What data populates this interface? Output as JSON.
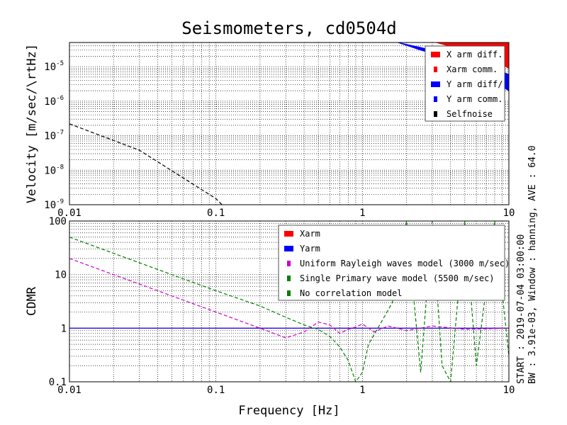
{
  "title": "Seismometers, cd0504d",
  "side_text": {
    "line1": "START : 2019-07-04 03:00:00",
    "line2": "BW : 3.91e-03, Window : hanning, AVE : 64.0"
  },
  "chart_data": [
    {
      "type": "line",
      "name": "velocity-panel",
      "ylabel": "Velocity [m/sec/\\rtHz]",
      "xscale": "log",
      "yscale": "log",
      "xlim": [
        0.01,
        10
      ],
      "ylim": [
        1e-09,
        5e-05
      ],
      "x_ticks": [
        "0.01",
        "0.1",
        "1",
        "10"
      ],
      "y_ticks": [
        {
          "base": "10",
          "exp": "-9",
          "value": 1e-09
        },
        {
          "base": "10",
          "exp": "-8",
          "value": 1e-08
        },
        {
          "base": "10",
          "exp": "-7",
          "value": 1e-07
        },
        {
          "base": "10",
          "exp": "-6",
          "value": 1e-06
        },
        {
          "base": "10",
          "exp": "-5",
          "value": 1e-05
        }
      ],
      "grid": true,
      "legend_position": "top-right",
      "series": [
        {
          "name": "X arm diff.",
          "color": "#ff0000",
          "style": "band",
          "x": [
            3.2,
            4.5,
            6.0,
            8.0,
            10.0
          ],
          "upper": [
            5e-05,
            5e-05,
            5e-05,
            5e-05,
            5e-05
          ],
          "lower": [
            5e-05,
            3.3e-05,
            2.1e-05,
            1.4e-05,
            9e-06
          ]
        },
        {
          "name": "Xarm comm.",
          "color": "#ff0000",
          "style": "dotted",
          "x": [],
          "y": []
        },
        {
          "name": "Y arm diff/",
          "color": "#0000ff",
          "style": "band",
          "x": [
            1.75,
            2.5,
            3.5,
            5.0,
            7.0,
            10.0
          ],
          "upper": [
            5e-05,
            3.6e-05,
            2.5e-05,
            1.6e-05,
            1e-05,
            6e-06
          ],
          "lower": [
            5e-05,
            3e-05,
            2e-05,
            1.2e-05,
            5e-06,
            2e-06
          ]
        },
        {
          "name": "Y arm comm.",
          "color": "#0000ff",
          "style": "dotted",
          "x": [],
          "y": []
        },
        {
          "name": "Selfnoise",
          "color": "#000000",
          "style": "dashed",
          "x": [
            0.01,
            0.03,
            0.1,
            0.11
          ],
          "y": [
            2.2e-07,
            3.8e-08,
            1.5e-09,
            1e-09
          ]
        }
      ]
    },
    {
      "type": "line",
      "name": "cdmr-panel",
      "xlabel": "Frequency [Hz]",
      "ylabel": "CDMR",
      "xscale": "log",
      "yscale": "log",
      "xlim": [
        0.01,
        10
      ],
      "ylim": [
        0.1,
        100
      ],
      "x_ticks": [
        "0.01",
        "0.1",
        "1",
        "10"
      ],
      "y_ticks": [
        {
          "label": "0.1",
          "value": 0.1
        },
        {
          "label": "1",
          "value": 1
        },
        {
          "label": "10",
          "value": 10
        },
        {
          "label": "100",
          "value": 100
        }
      ],
      "grid": true,
      "legend_position": "top-right",
      "series": [
        {
          "name": "Xarm",
          "color": "#ff0000",
          "style": "solid",
          "x": [
            0.01,
            10
          ],
          "y": [
            1.0,
            1.0
          ]
        },
        {
          "name": "Yarm",
          "color": "#0000ff",
          "style": "solid",
          "x": [
            0.01,
            10
          ],
          "y": [
            1.0,
            1.0
          ]
        },
        {
          "name": "Uniform Rayleigh waves model (3000 m/sec)",
          "color": "#cc00cc",
          "style": "dashed",
          "x": [
            0.01,
            0.02,
            0.05,
            0.1,
            0.2,
            0.3,
            0.4,
            0.5,
            0.6,
            0.7,
            0.8,
            0.9,
            1.0,
            1.2,
            1.5,
            2,
            3,
            5,
            10
          ],
          "y": [
            20,
            10,
            4.0,
            2.0,
            1.0,
            0.66,
            0.85,
            1.3,
            1.15,
            0.8,
            0.95,
            1.05,
            1.2,
            0.85,
            1.1,
            0.9,
            1.1,
            0.95,
            1.0
          ]
        },
        {
          "name": "Single Primary wave model (5500 m/sec)",
          "color": "#008000",
          "style": "dashed",
          "x": [
            0.01,
            0.02,
            0.05,
            0.1,
            0.2,
            0.3,
            0.4,
            0.5,
            0.6,
            0.7,
            0.8,
            0.9,
            1.0,
            1.1,
            1.3,
            1.6,
            2.0,
            2.5,
            3.0,
            3.5,
            4.0,
            5.0,
            6.0,
            8.0,
            10.0
          ],
          "y": [
            50,
            25,
            10,
            5.0,
            2.6,
            1.6,
            1.15,
            0.95,
            0.7,
            0.45,
            0.25,
            0.1,
            0.15,
            0.5,
            1.1,
            3.0,
            100,
            0.15,
            100,
            0.2,
            0.1,
            100,
            0.2,
            100,
            0.3
          ]
        },
        {
          "name": "No correlation model",
          "color": "#008000",
          "style": "dotted",
          "x": [],
          "y": []
        }
      ]
    }
  ]
}
